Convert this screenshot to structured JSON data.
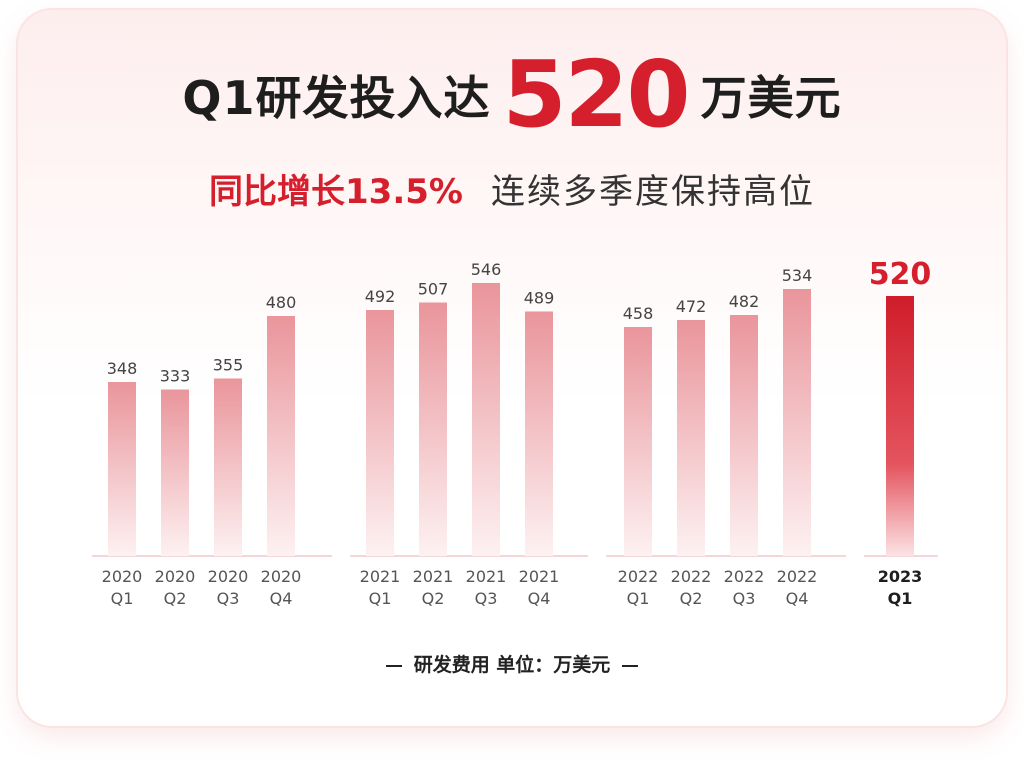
{
  "headline": {
    "prefix": "Q1研发投入达",
    "number": "520",
    "suffix": "万美元"
  },
  "subline": {
    "growth": "同比增长13.5%",
    "note": "连续多季度保持高位"
  },
  "footer": {
    "note": "研发费用 单位：万美元"
  },
  "colors": {
    "accent": "#d61f2c",
    "bar_top": "#e9959b",
    "bar_bottom": "#fdf1f2",
    "highlight_top": "#cf1d2a",
    "highlight_bottom": "#fbe3e5",
    "baseline": "#f0c9cc"
  },
  "chart_data": {
    "type": "bar",
    "ylim": [
      0,
      560
    ],
    "groups": [
      {
        "bars": [
          {
            "year": "2020",
            "quarter": "Q1",
            "value": 348
          },
          {
            "year": "2020",
            "quarter": "Q2",
            "value": 333
          },
          {
            "year": "2020",
            "quarter": "Q3",
            "value": 355
          },
          {
            "year": "2020",
            "quarter": "Q4",
            "value": 480
          }
        ]
      },
      {
        "bars": [
          {
            "year": "2021",
            "quarter": "Q1",
            "value": 492
          },
          {
            "year": "2021",
            "quarter": "Q2",
            "value": 507
          },
          {
            "year": "2021",
            "quarter": "Q3",
            "value": 546
          },
          {
            "year": "2021",
            "quarter": "Q4",
            "value": 489
          }
        ]
      },
      {
        "bars": [
          {
            "year": "2022",
            "quarter": "Q1",
            "value": 458
          },
          {
            "year": "2022",
            "quarter": "Q2",
            "value": 472
          },
          {
            "year": "2022",
            "quarter": "Q3",
            "value": 482
          },
          {
            "year": "2022",
            "quarter": "Q4",
            "value": 534
          }
        ]
      },
      {
        "highlight": true,
        "bars": [
          {
            "year": "2023",
            "quarter": "Q1",
            "value": 520
          }
        ]
      }
    ]
  }
}
